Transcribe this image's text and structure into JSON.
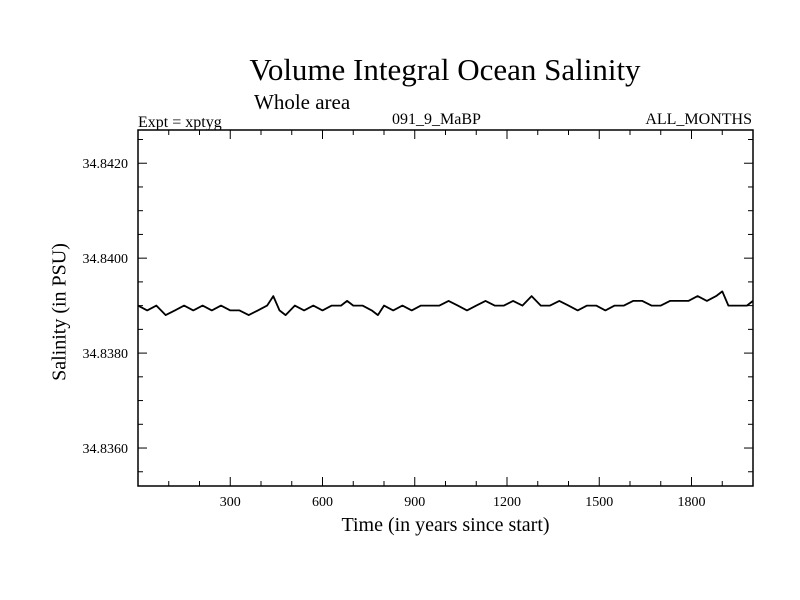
{
  "chart_data": {
    "type": "line",
    "title": "Volume Integral Ocean Salinity",
    "subtitle": "Whole area",
    "annotations": {
      "left": "Expt = xptyg",
      "center": "091_9_MaBP",
      "right": "ALL_MONTHS"
    },
    "xlabel": "Time (in years since start)",
    "ylabel": "Salinity (in PSU)",
    "xlim": [
      0,
      2000
    ],
    "ylim": [
      34.8352,
      34.8427
    ],
    "x_ticks": [
      300,
      600,
      900,
      1200,
      1500,
      1800
    ],
    "x_tick_labels": [
      "300",
      "600",
      "900",
      "1200",
      "1500",
      "1800"
    ],
    "y_ticks": [
      34.836,
      34.838,
      34.84,
      34.842
    ],
    "y_tick_labels": [
      "34.8360",
      "34.8380",
      "34.8400",
      "34.8420"
    ],
    "grid": false,
    "series": [
      {
        "color": "#000000",
        "x": [
          0,
          30,
          60,
          90,
          120,
          150,
          180,
          210,
          240,
          270,
          300,
          330,
          360,
          390,
          420,
          440,
          460,
          480,
          510,
          540,
          570,
          600,
          630,
          660,
          680,
          700,
          730,
          760,
          780,
          800,
          830,
          860,
          890,
          920,
          950,
          980,
          1010,
          1040,
          1070,
          1100,
          1130,
          1160,
          1190,
          1220,
          1250,
          1280,
          1310,
          1340,
          1370,
          1400,
          1430,
          1460,
          1490,
          1520,
          1550,
          1580,
          1610,
          1640,
          1670,
          1700,
          1730,
          1760,
          1790,
          1820,
          1850,
          1880,
          1900,
          1920,
          1950,
          1980,
          2000
        ],
        "y": [
          34.839,
          34.8389,
          34.839,
          34.8388,
          34.8389,
          34.839,
          34.8389,
          34.839,
          34.8389,
          34.839,
          34.8389,
          34.8389,
          34.8388,
          34.8389,
          34.839,
          34.8392,
          34.8389,
          34.8388,
          34.839,
          34.8389,
          34.839,
          34.8389,
          34.839,
          34.839,
          34.8391,
          34.839,
          34.839,
          34.8389,
          34.8388,
          34.839,
          34.8389,
          34.839,
          34.8389,
          34.839,
          34.839,
          34.839,
          34.8391,
          34.839,
          34.8389,
          34.839,
          34.8391,
          34.839,
          34.839,
          34.8391,
          34.839,
          34.8392,
          34.839,
          34.839,
          34.8391,
          34.839,
          34.8389,
          34.839,
          34.839,
          34.8389,
          34.839,
          34.839,
          34.8391,
          34.8391,
          34.839,
          34.839,
          34.8391,
          34.8391,
          34.8391,
          34.8392,
          34.8391,
          34.8392,
          34.8393,
          34.839,
          34.839,
          34.839,
          34.8391
        ]
      }
    ]
  }
}
